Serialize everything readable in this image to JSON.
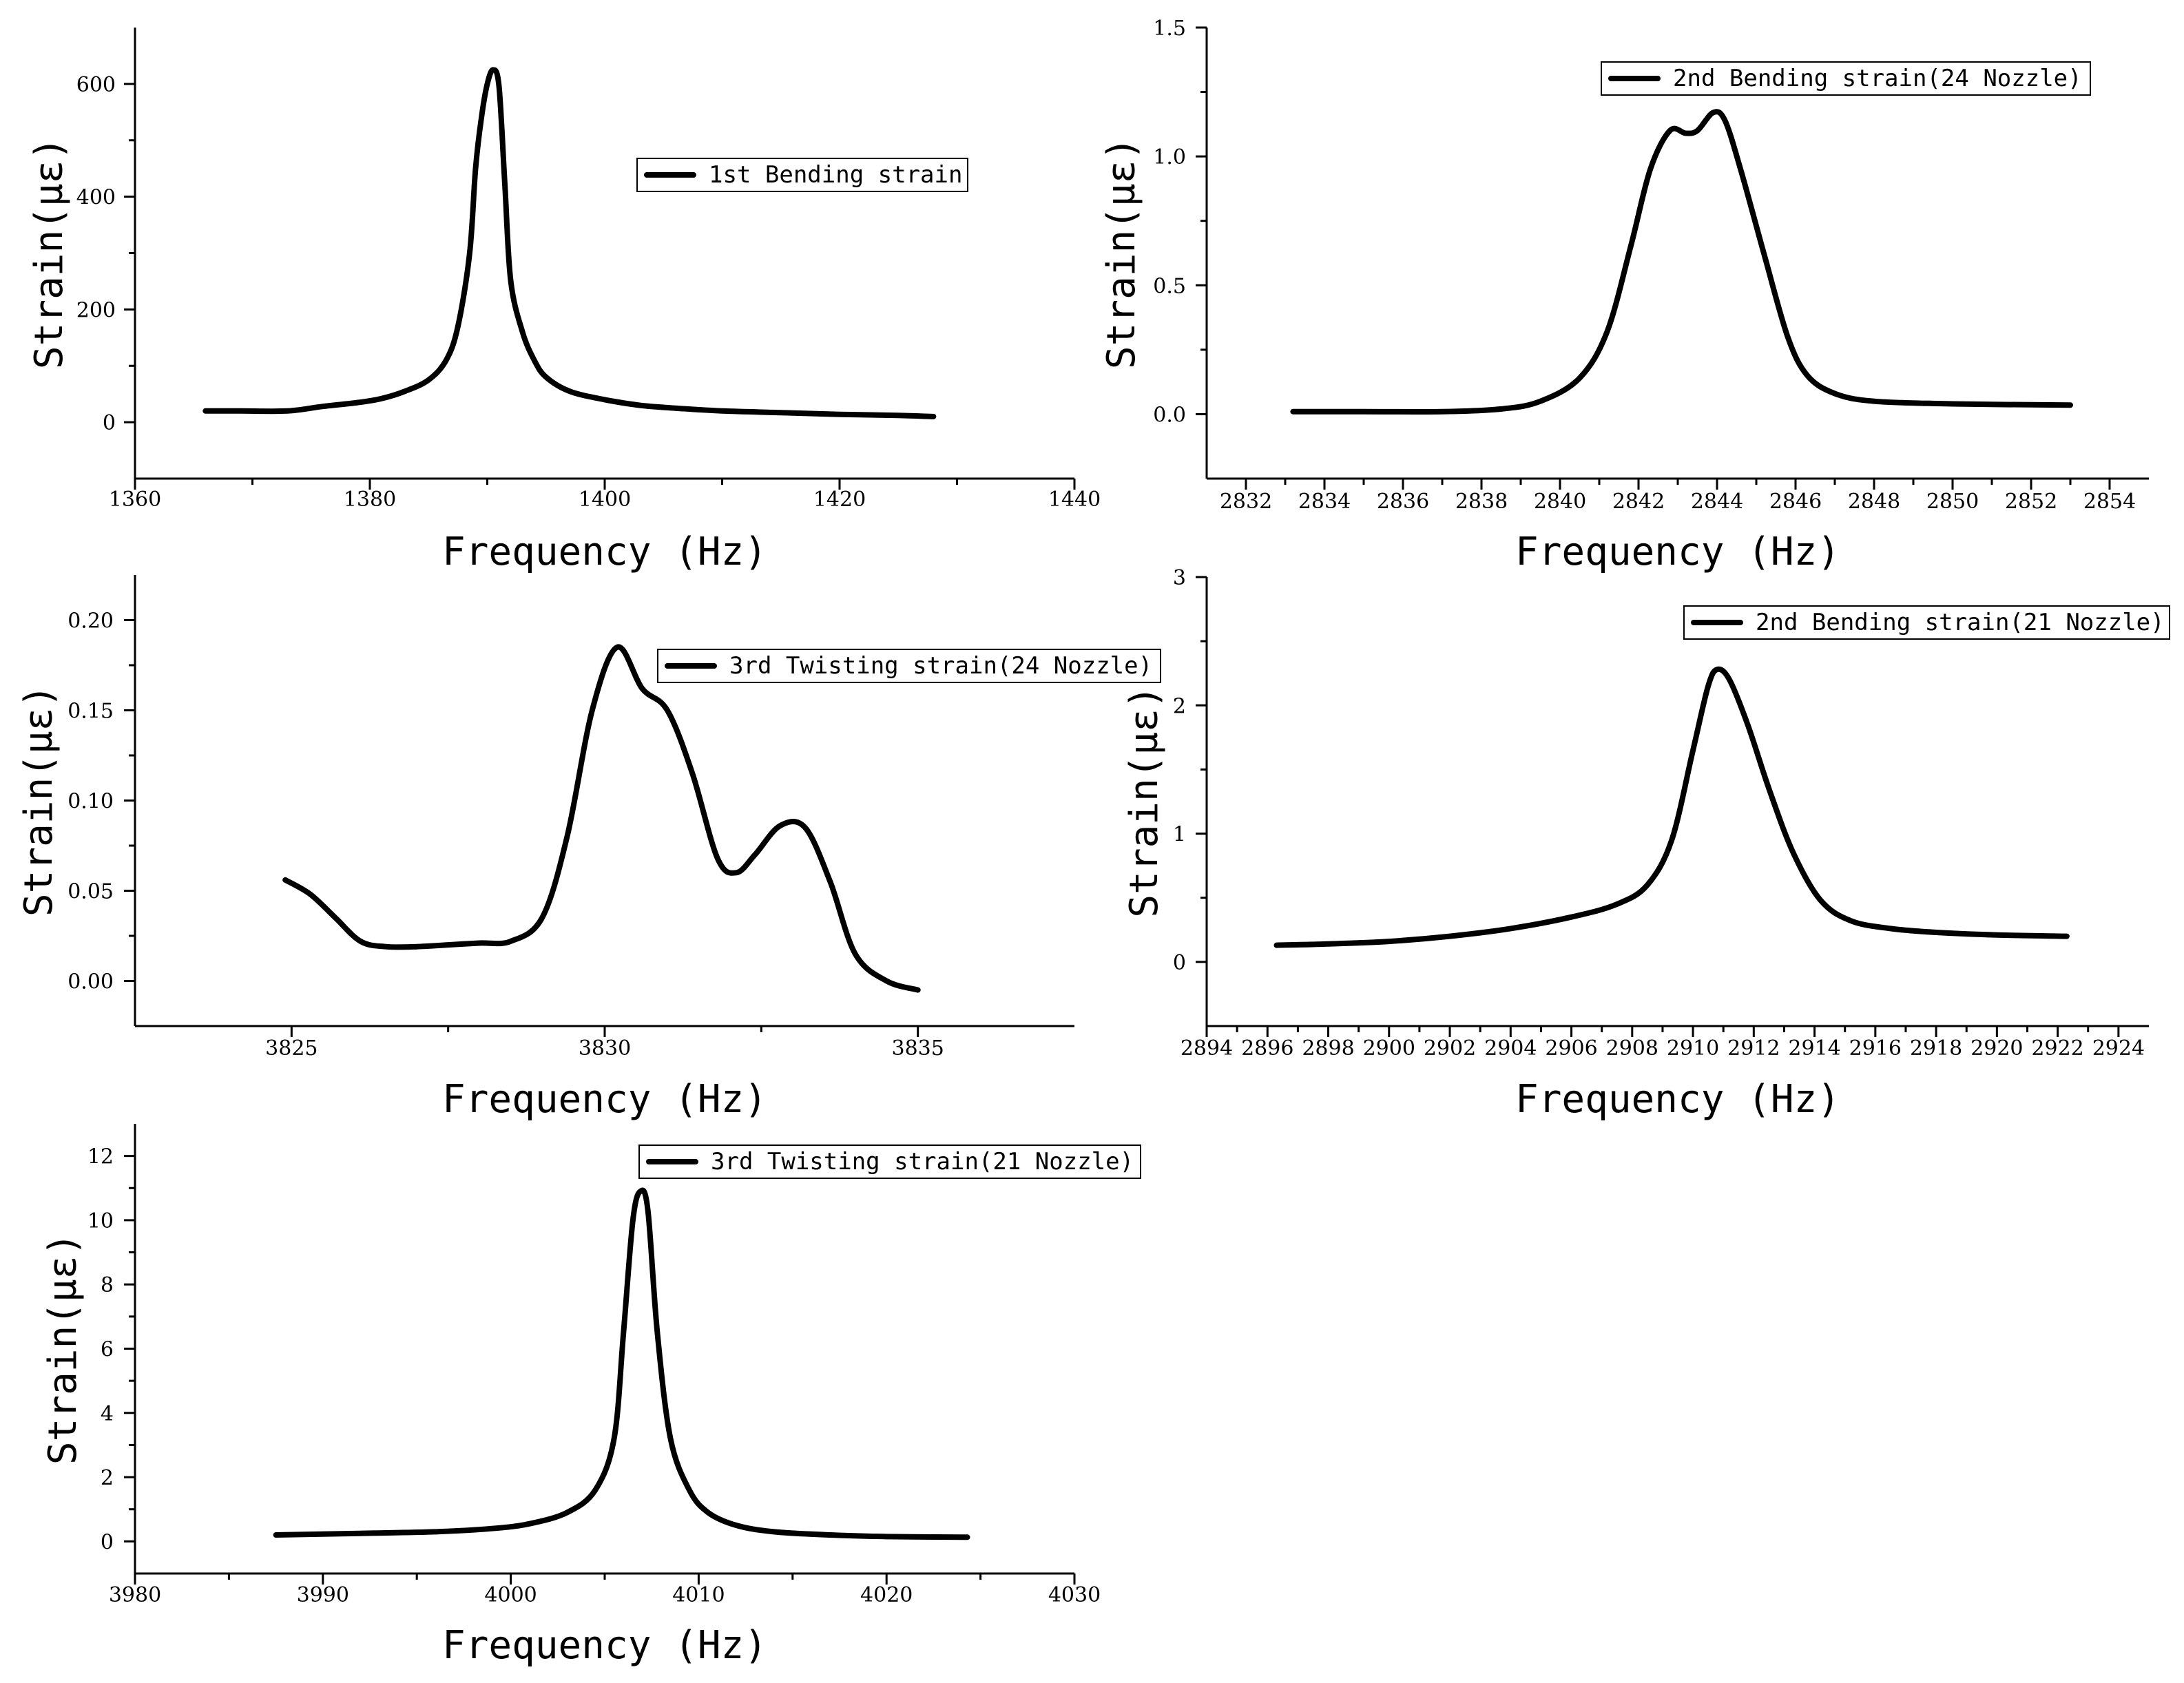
{
  "chart_data": [
    {
      "id": "p1",
      "type": "line",
      "xlabel": "Frequency (Hz)",
      "ylabel": "Strain(με)",
      "xlim": [
        1360,
        1440
      ],
      "ylim": [
        -100,
        700
      ],
      "xticks": [
        1360,
        1380,
        1400,
        1420,
        1440
      ],
      "yticks": [
        0,
        200,
        400,
        600
      ],
      "ytick_labels": [
        "0",
        "200",
        "400",
        "600"
      ],
      "series": [
        {
          "name": "1st Bending strain",
          "x": [
            1366,
            1369,
            1373,
            1376,
            1379,
            1381,
            1383,
            1385,
            1386.5,
            1387.5,
            1388.5,
            1389,
            1389.5,
            1390,
            1390.5,
            1391,
            1391.5,
            1392,
            1393,
            1394,
            1395,
            1397,
            1400,
            1403,
            1406,
            1410,
            1415,
            1420,
            1425,
            1428
          ],
          "values": [
            20,
            20,
            20,
            28,
            35,
            42,
            55,
            75,
            110,
            170,
            300,
            450,
            540,
            600,
            625,
            595,
            420,
            250,
            160,
            110,
            80,
            55,
            40,
            30,
            25,
            20,
            17,
            14,
            12,
            10
          ]
        }
      ]
    },
    {
      "id": "p2",
      "type": "line",
      "xlabel": "Frequency (Hz)",
      "ylabel": "Strain(με)",
      "xlim": [
        2831,
        2855
      ],
      "ylim": [
        -0.25,
        1.5
      ],
      "xticks": [
        2832,
        2834,
        2836,
        2838,
        2840,
        2842,
        2844,
        2846,
        2848,
        2850,
        2852,
        2854
      ],
      "yticks": [
        0,
        0.5,
        1,
        1.5
      ],
      "ytick_labels": [
        "0.0",
        "0.5",
        "1.0",
        "1.5"
      ],
      "series": [
        {
          "name": "2nd Bending strain(24 Nozzle)",
          "x": [
            2833.2,
            2835,
            2837,
            2838.5,
            2839.5,
            2840.5,
            2841.2,
            2841.8,
            2842.3,
            2842.8,
            2843.2,
            2843.5,
            2843.9,
            2844.2,
            2844.6,
            2845.2,
            2845.8,
            2846.3,
            2847,
            2848,
            2850,
            2853
          ],
          "values": [
            0.01,
            0.01,
            0.01,
            0.02,
            0.05,
            0.14,
            0.32,
            0.65,
            0.95,
            1.1,
            1.09,
            1.1,
            1.17,
            1.14,
            0.95,
            0.62,
            0.3,
            0.15,
            0.08,
            0.05,
            0.04,
            0.035
          ]
        }
      ]
    },
    {
      "id": "p3",
      "type": "line",
      "xlabel": "Frequency (Hz)",
      "ylabel": "Strain(με)",
      "xlim": [
        3822.5,
        3837.5
      ],
      "ylim": [
        -0.025,
        0.225
      ],
      "xticks": [
        3825,
        3830,
        3835
      ],
      "yticks": [
        0,
        0.05,
        0.1,
        0.15,
        0.2
      ],
      "ytick_labels": [
        "0.00",
        "0.05",
        "0.10",
        "0.15",
        "0.20"
      ],
      "series": [
        {
          "name": "3rd Twisting strain(24 Nozzle)",
          "x": [
            3824.9,
            3825.3,
            3825.7,
            3826.1,
            3826.5,
            3827,
            3827.5,
            3828,
            3828.5,
            3829,
            3829.4,
            3829.8,
            3830.2,
            3830.6,
            3831,
            3831.4,
            3831.8,
            3832.1,
            3832.4,
            3832.8,
            3833.2,
            3833.6,
            3834,
            3834.5,
            3835
          ],
          "values": [
            0.056,
            0.048,
            0.035,
            0.022,
            0.019,
            0.019,
            0.02,
            0.021,
            0.022,
            0.035,
            0.08,
            0.15,
            0.185,
            0.162,
            0.15,
            0.115,
            0.068,
            0.06,
            0.07,
            0.086,
            0.085,
            0.055,
            0.015,
            0.0,
            -0.005
          ]
        }
      ]
    },
    {
      "id": "p4",
      "type": "line",
      "xlabel": "Frequency (Hz)",
      "ylabel": "Strain(με)",
      "xlim": [
        2894,
        2925
      ],
      "ylim": [
        -0.5,
        3
      ],
      "xticks": [
        2894,
        2896,
        2898,
        2900,
        2902,
        2904,
        2906,
        2908,
        2910,
        2912,
        2914,
        2916,
        2918,
        2920,
        2922,
        2924
      ],
      "yticks": [
        0,
        1,
        2,
        3
      ],
      "ytick_labels": [
        "0",
        "1",
        "2",
        "3"
      ],
      "series": [
        {
          "name": "2nd Bending strain(21 Nozzle)",
          "x": [
            2896.3,
            2898,
            2900,
            2902,
            2904,
            2906,
            2907.5,
            2908.5,
            2909.3,
            2910,
            2910.5,
            2910.8,
            2911.2,
            2911.8,
            2912.5,
            2913.3,
            2914.2,
            2915.2,
            2916.5,
            2918,
            2920,
            2922.3
          ],
          "values": [
            0.13,
            0.14,
            0.16,
            0.2,
            0.26,
            0.35,
            0.45,
            0.6,
            0.95,
            1.65,
            2.15,
            2.28,
            2.2,
            1.85,
            1.35,
            0.85,
            0.48,
            0.32,
            0.26,
            0.23,
            0.21,
            0.2
          ]
        }
      ]
    },
    {
      "id": "p5",
      "type": "line",
      "xlabel": "Frequency (Hz)",
      "ylabel": "Strain(με)",
      "xlim": [
        3980,
        4030
      ],
      "ylim": [
        -1,
        13
      ],
      "xticks": [
        3980,
        3990,
        4000,
        4010,
        4020,
        4030
      ],
      "yticks": [
        0,
        2,
        4,
        6,
        8,
        10,
        12
      ],
      "ytick_labels": [
        "0",
        "2",
        "4",
        "6",
        "8",
        "10",
        "12"
      ],
      "series": [
        {
          "name": "3rd Twisting strain(21 Nozzle)",
          "x": [
            3987.5,
            3992,
            3996,
            3999,
            4001,
            4003,
            4004.5,
            4005.5,
            4006,
            4006.5,
            4006.9,
            4007.3,
            4007.8,
            4008.5,
            4009.5,
            4010.5,
            4012,
            4014,
            4017,
            4020,
            4024.3
          ],
          "values": [
            0.2,
            0.25,
            0.3,
            0.4,
            0.55,
            0.9,
            1.6,
            3.2,
            6.5,
            10,
            10.9,
            10.3,
            6.5,
            3.2,
            1.6,
            0.9,
            0.5,
            0.3,
            0.2,
            0.15,
            0.13
          ]
        }
      ]
    }
  ]
}
